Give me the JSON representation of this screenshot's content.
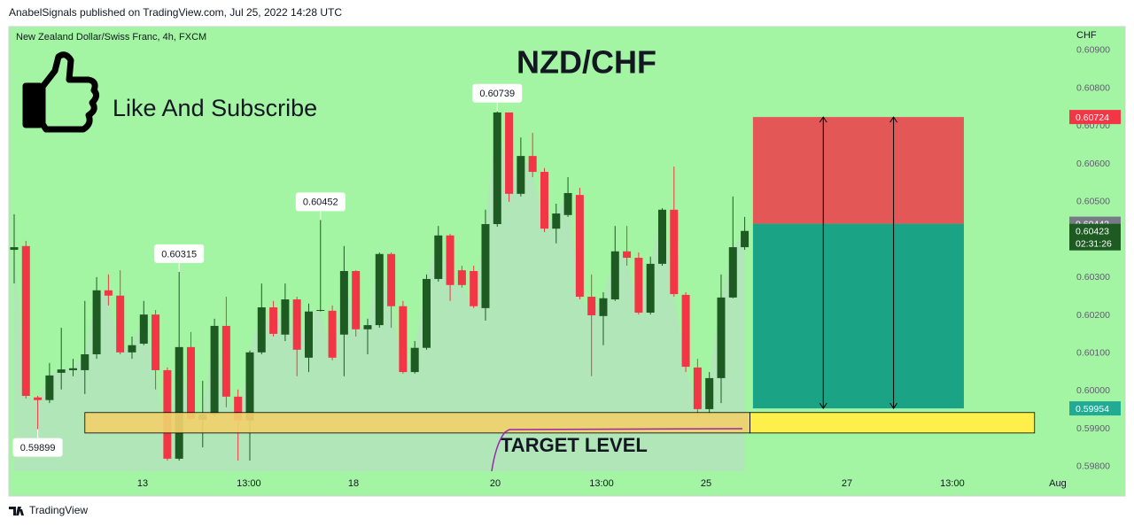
{
  "header": {
    "published": "AnabelSignals published on TradingView.com, Jul 25, 2022 14:28 UTC"
  },
  "footer": {
    "brand": "TradingView"
  },
  "chart_data": {
    "type": "candlestick",
    "title": "NZD/CHF",
    "subtitle": "New Zealand Dollar/Swiss Franc, 4h, FXCM",
    "cta": "Like And Subscribe",
    "y_axis_label": "CHF",
    "up_color": "#1e5b23",
    "down_color": "#f23645",
    "area_color": "#b4e2bd",
    "x": [
      0,
      1,
      2,
      3,
      4,
      5,
      6,
      7,
      8,
      9,
      10,
      11,
      12,
      13,
      14,
      15,
      16,
      17,
      18,
      19,
      20,
      21,
      22,
      23,
      24,
      25,
      26,
      27,
      28,
      29,
      30,
      31,
      32,
      33,
      34,
      35,
      36,
      37,
      38,
      39,
      40,
      41,
      42,
      43,
      44,
      45,
      46,
      47,
      48,
      49,
      50,
      51,
      52,
      53,
      54,
      55,
      56,
      57,
      58,
      59,
      60,
      61,
      62
    ],
    "open": [
      0.60373,
      0.60383,
      0.59983,
      0.59976,
      0.60048,
      0.60055,
      0.60055,
      0.60097,
      0.60266,
      0.60252,
      0.60102,
      0.60125,
      0.60202,
      0.60055,
      0.59821,
      0.60116,
      0.59924,
      0.59938,
      0.60172,
      0.59985,
      0.59922,
      0.60102,
      0.60221,
      0.60149,
      0.60242,
      0.60088,
      0.60212,
      0.60212,
      0.60149,
      0.60317,
      0.60163,
      0.60174,
      0.60362,
      0.60224,
      0.6005,
      0.60114,
      0.60296,
      0.60411,
      0.60319,
      0.60317,
      0.60219,
      0.60441,
      0.60736,
      0.60521,
      0.60621,
      0.60579,
      0.60429,
      0.60465,
      0.60518,
      0.60249,
      0.60198,
      0.60242,
      0.60369,
      0.60352,
      0.60207,
      0.60336,
      0.60479,
      0.60254,
      0.60062,
      0.59952,
      0.60034,
      0.60247,
      0.6038
    ],
    "high": [
      0.60467,
      0.60397,
      0.59987,
      0.60074,
      0.60167,
      0.60085,
      0.60238,
      0.60301,
      0.60308,
      0.60319,
      0.60144,
      0.60238,
      0.60214,
      0.60062,
      0.60315,
      0.60156,
      0.60027,
      0.60191,
      0.60249,
      0.60004,
      0.60107,
      0.60284,
      0.60238,
      0.60284,
      0.60249,
      0.60231,
      0.60452,
      0.60226,
      0.60383,
      0.60319,
      0.60191,
      0.60366,
      0.60366,
      0.60238,
      0.60132,
      0.60308,
      0.60436,
      0.60415,
      0.60331,
      0.60331,
      0.60479,
      0.60739,
      0.6073,
      0.6067,
      0.60682,
      0.60589,
      0.60495,
      0.60565,
      0.60537,
      0.60308,
      0.60261,
      0.60436,
      0.60436,
      0.60366,
      0.60355,
      0.60483,
      0.60593,
      0.60261,
      0.60085,
      0.6005,
      0.60308,
      0.60514,
      0.6046
    ],
    "low": [
      0.60284,
      0.5998,
      0.59899,
      0.59968,
      0.60004,
      0.60039,
      0.59992,
      0.60085,
      0.60226,
      0.60097,
      0.60085,
      0.60121,
      0.60004,
      0.59816,
      0.59816,
      0.59922,
      0.59851,
      0.59933,
      0.59957,
      0.59816,
      0.59816,
      0.60097,
      0.60144,
      0.60132,
      0.60039,
      0.6005,
      0.6021,
      0.60081,
      0.60039,
      0.60144,
      0.60097,
      0.60167,
      0.60167,
      0.60046,
      0.60046,
      0.60109,
      0.60289,
      0.60238,
      0.60273,
      0.60219,
      0.60186,
      0.60434,
      0.605,
      0.60514,
      0.60565,
      0.6042,
      0.6039,
      0.6046,
      0.60242,
      0.60039,
      0.60121,
      0.60238,
      0.60331,
      0.60202,
      0.60202,
      0.60331,
      0.60249,
      0.6005,
      0.59933,
      0.59938,
      0.59968,
      0.60245,
      0.60373
    ],
    "close": [
      0.6038,
      0.59987,
      0.59976,
      0.60041,
      0.60057,
      0.6006,
      0.60097,
      0.60266,
      0.60252,
      0.60102,
      0.60121,
      0.60202,
      0.60055,
      0.59821,
      0.60116,
      0.59926,
      0.59938,
      0.60172,
      0.59985,
      0.59922,
      0.60102,
      0.60221,
      0.60151,
      0.60242,
      0.60109,
      0.6021,
      0.60214,
      0.60088,
      0.60317,
      0.60163,
      0.60174,
      0.60362,
      0.60224,
      0.6005,
      0.60114,
      0.60296,
      0.60411,
      0.6028,
      0.6028,
      0.60224,
      0.60441,
      0.60736,
      0.60521,
      0.60621,
      0.60579,
      0.60429,
      0.60469,
      0.60523,
      0.60249,
      0.602,
      0.60245,
      0.60369,
      0.60352,
      0.60207,
      0.60336,
      0.60479,
      0.60256,
      0.60064,
      0.59952,
      0.60034,
      0.60247,
      0.6038,
      0.60423
    ],
    "countdown": "02:31:26",
    "current_color": "#1e5b23",
    "annotations": [
      {
        "x": 2,
        "value": 0.59899
      },
      {
        "x": 14,
        "value": 0.60315
      },
      {
        "x": 26,
        "value": 0.60452
      },
      {
        "x": 41,
        "value": 0.60739
      }
    ],
    "position": {
      "entry": 0.60442,
      "stop": 0.60724,
      "target": 0.59954,
      "xlim": [
        62.7,
        80.6
      ],
      "stop_color": "#e35757",
      "target_color": "#1aa385",
      "stop_label_color": "#f23645",
      "entry_label_color": "#787b86",
      "target_label_color": "#22ab94"
    },
    "support_zone": {
      "ylim": [
        0.59889,
        0.59943
      ],
      "xlim": [
        6.0,
        86.6
      ],
      "color": "#f0d06c",
      "future_color": "#ffef4a",
      "label": "TARGET LEVEL"
    },
    "xlim": [
      -0.45,
      89.4
    ],
    "ylim": [
      0.59788,
      0.60963
    ],
    "xticks": [
      {
        "value": 10.9,
        "label": "13"
      },
      {
        "value": 19.92,
        "label": "13:00"
      },
      {
        "value": 28.8,
        "label": "18"
      },
      {
        "value": 40.83,
        "label": "20"
      },
      {
        "value": 49.85,
        "label": "13:00"
      },
      {
        "value": 58.72,
        "label": "25"
      },
      {
        "value": 70.68,
        "label": "27"
      },
      {
        "value": 79.62,
        "label": "13:00"
      },
      {
        "value": 88.57,
        "label": "Aug"
      }
    ],
    "yticks": [
      {
        "value": 0.598,
        "label": "0.59800"
      },
      {
        "value": 0.599,
        "label": "0.59900"
      },
      {
        "value": 0.6,
        "label": "0.60000"
      },
      {
        "value": 0.601,
        "label": "0.60100"
      },
      {
        "value": 0.602,
        "label": "0.60200"
      },
      {
        "value": 0.603,
        "label": "0.60300"
      },
      {
        "value": 0.604,
        "label": "0.60400"
      },
      {
        "value": 0.605,
        "label": "0.60500"
      },
      {
        "value": 0.606,
        "label": "0.60600"
      },
      {
        "value": 0.607,
        "label": "0.60700"
      },
      {
        "value": 0.608,
        "label": "0.60800"
      },
      {
        "value": 0.609,
        "label": "0.60900"
      }
    ]
  }
}
